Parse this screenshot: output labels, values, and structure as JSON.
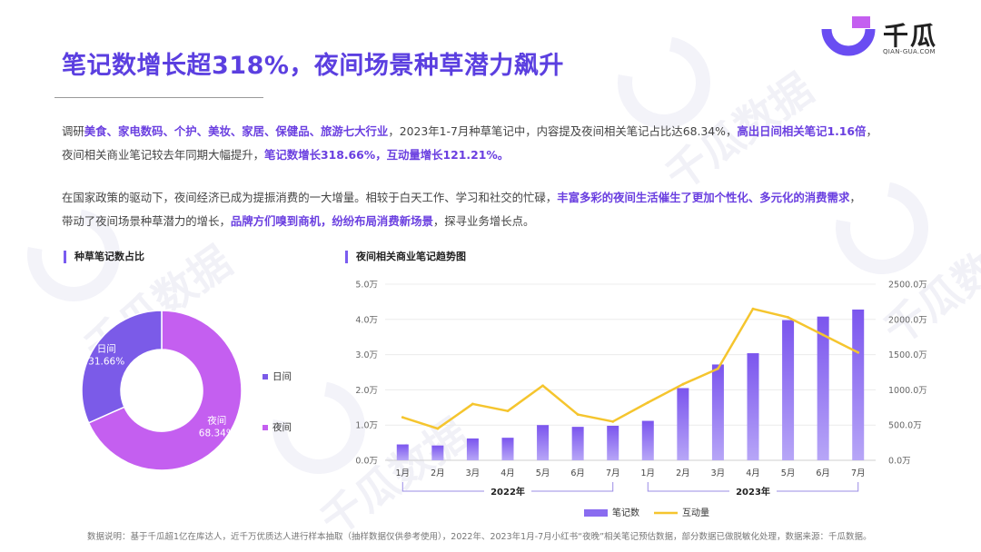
{
  "page": {
    "title": "笔记数增长超318%，夜间场景种草潜力飙升",
    "logo": {
      "name": "千瓜",
      "domain": "QIAN-GUA.COM"
    },
    "paragraph1": [
      {
        "t": "调研",
        "b": false
      },
      {
        "t": "美食、家电数码、个护、美妆、家居、保健品、旅游七大行业",
        "b": true
      },
      {
        "t": "，2023年1-7月种草笔记中，内容提及夜间相关笔记占比达68.34%，",
        "b": false
      },
      {
        "t": "高出日间相关笔记1.16倍",
        "b": true
      },
      {
        "t": "，",
        "b": false
      },
      {
        "t": "夜间相关商业笔记较去年同期大幅提升，",
        "b": false,
        "br": true
      },
      {
        "t": "笔记数增长318.66%，互动量增长121.21%。",
        "b": true
      }
    ],
    "paragraph2": [
      {
        "t": "在国家政策的驱动下，夜间经济已成为提振消费的一大增量。相较于白天工作、学习和社交的忙碌，",
        "b": false
      },
      {
        "t": "丰富多彩的夜间生活催生了更加个性化、多元化的消费需求",
        "b": true
      },
      {
        "t": "，",
        "b": false
      },
      {
        "t": "带动了夜间场景种草潜力的增长，",
        "b": false,
        "br": true
      },
      {
        "t": "品牌方们嗅到商机，纷纷布局消费新场景",
        "b": true
      },
      {
        "t": "，探寻业务增长点。",
        "b": false
      }
    ],
    "footnote": "数据说明：基于千瓜超1亿在库达人，近千万优质达人进行样本抽取（抽样数据仅供参考使用），2022年、2023年1月-7月小红书“夜晚”相关笔记预估数据，部分数据已做脱敏化处理，数据来源：千瓜数据。",
    "watermark": "千瓜数据",
    "watermark_sub": "QIAN-GUA.COM"
  },
  "chart_data": [
    {
      "type": "pie",
      "variant": "donut",
      "title": "种草笔记数占比",
      "slices": [
        {
          "name": "夜间",
          "value": 68.34,
          "label": "68.34%",
          "color": "#c45ff0"
        },
        {
          "name": "日间",
          "value": 31.66,
          "label": "31.66%",
          "color": "#7b5be8"
        }
      ],
      "legend": {
        "position": "right",
        "items": [
          "日间",
          "夜间"
        ]
      }
    },
    {
      "type": "bar+line",
      "title": "夜间相关商业笔记趋势图",
      "categories": [
        "1月",
        "2月",
        "3月",
        "4月",
        "5月",
        "6月",
        "7月",
        "1月",
        "2月",
        "3月",
        "4月",
        "5月",
        "6月",
        "7月"
      ],
      "groups": [
        {
          "label": "2022年",
          "from": 0,
          "to": 6
        },
        {
          "label": "2023年",
          "from": 7,
          "to": 13
        }
      ],
      "series": [
        {
          "name": "笔记数",
          "kind": "bar",
          "axis": "left",
          "color": "#8a6cf0",
          "values": [
            0.45,
            0.42,
            0.62,
            0.64,
            1.0,
            0.95,
            0.98,
            1.12,
            2.05,
            2.72,
            3.04,
            3.98,
            4.08,
            4.28
          ]
        },
        {
          "name": "互动量",
          "kind": "line",
          "axis": "right",
          "color": "#f5c52e",
          "values": [
            610,
            450,
            800,
            700,
            1060,
            650,
            550,
            820,
            1080,
            1300,
            2150,
            2030,
            1780,
            1530
          ]
        }
      ],
      "y_left": {
        "min": 0,
        "max": 5,
        "ticks": [
          "0.0万",
          "1.0万",
          "2.0万",
          "3.0万",
          "4.0万",
          "5.0万"
        ]
      },
      "y_right": {
        "min": 0,
        "max": 2500,
        "ticks": [
          "0.0万",
          "500.0万",
          "1000.0万",
          "1500.0万",
          "2000.0万",
          "2500.0万"
        ]
      },
      "legend": {
        "position": "bottom",
        "items": [
          "笔记数",
          "互动量"
        ]
      }
    }
  ]
}
